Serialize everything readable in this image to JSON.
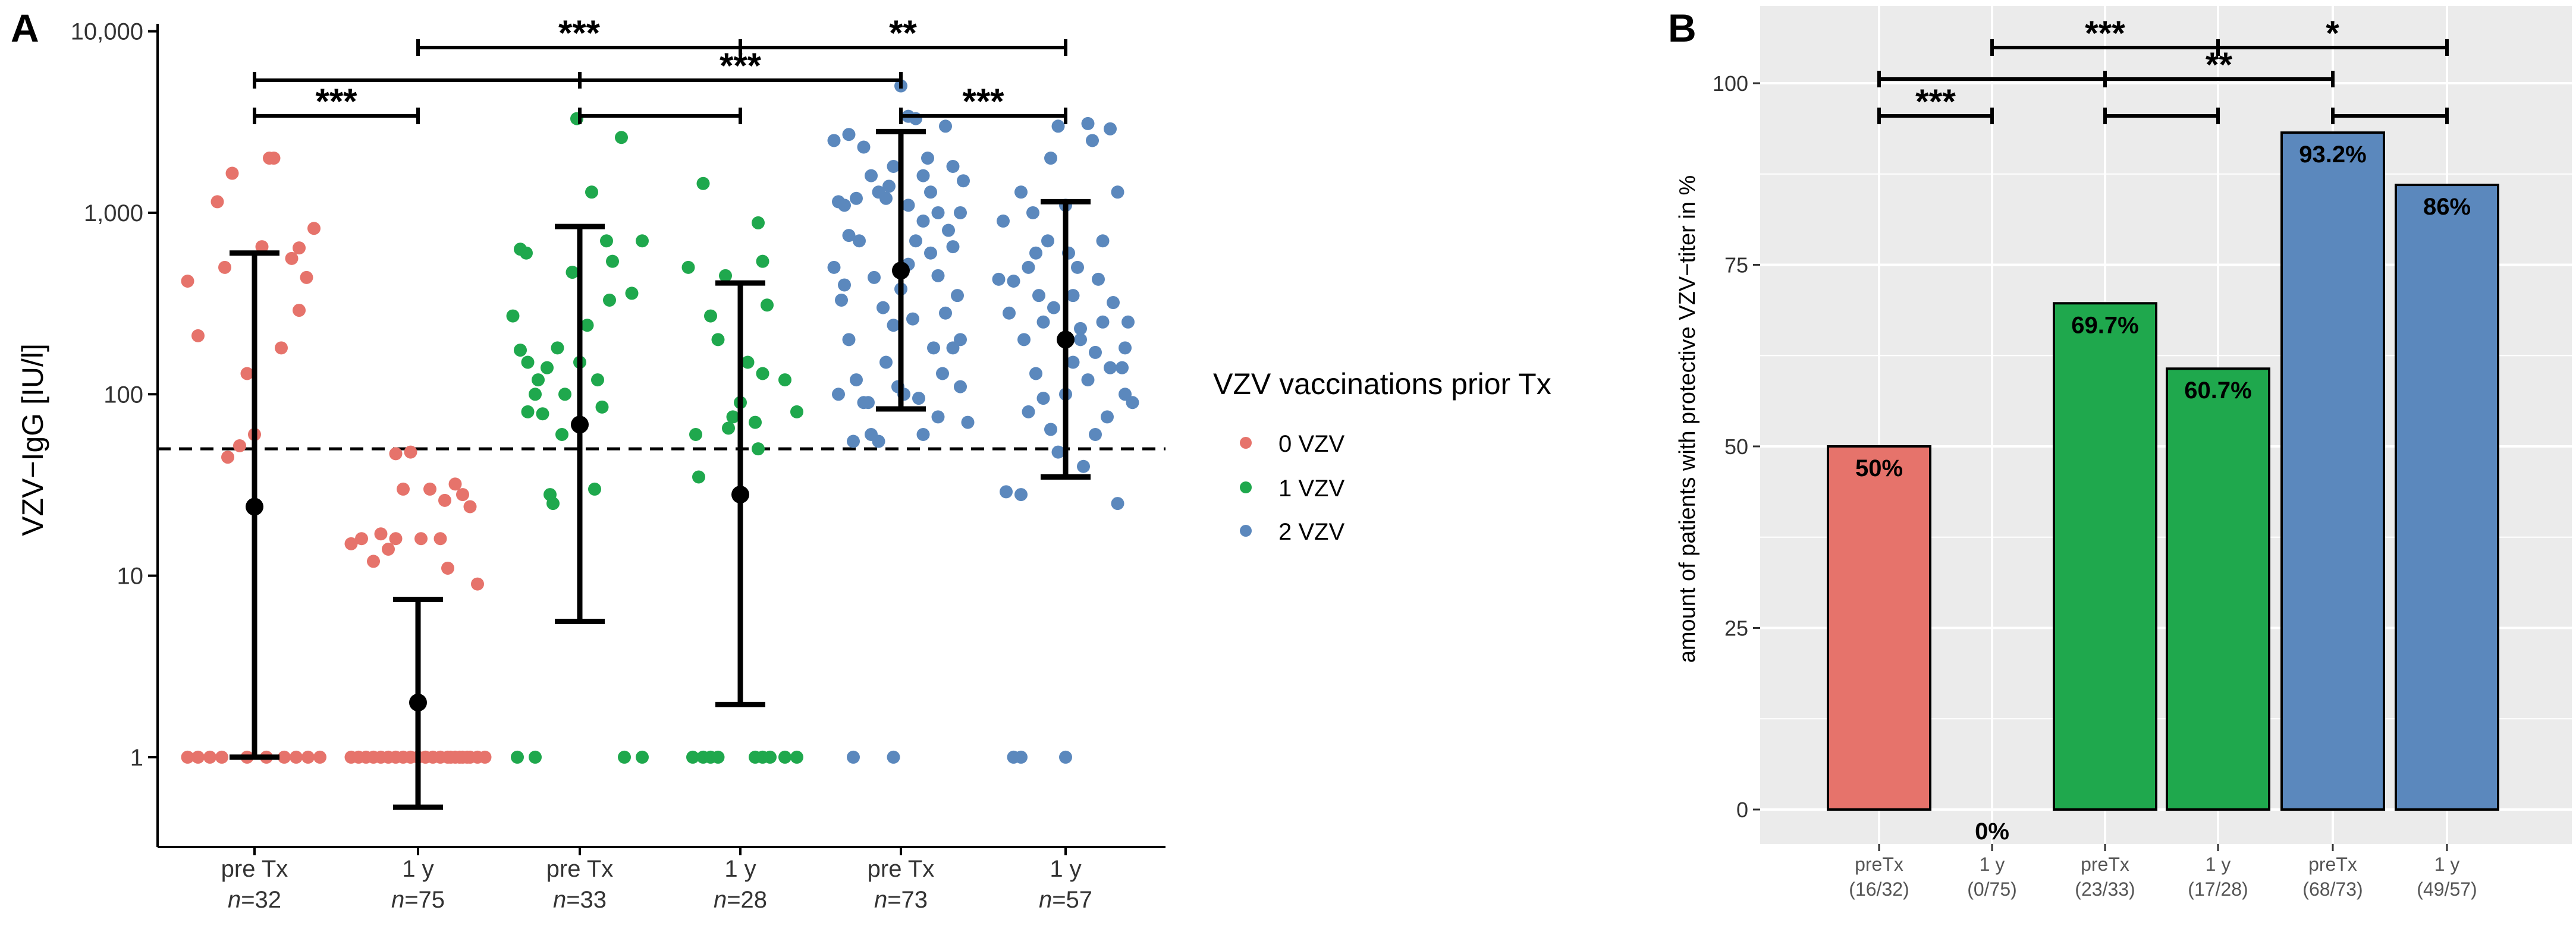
{
  "colors": {
    "vzv0": "#e6736b",
    "vzv1": "#1fa84d",
    "vzv2": "#5b88bd",
    "panel_bg_b": "#ebebeb",
    "grid_b": "#ffffff",
    "black": "#000000"
  },
  "chart_data": [
    {
      "panel": "A",
      "type": "scatter",
      "ylabel": "VZV−IgG [IU/l]",
      "yscale": "log10",
      "ylim": [
        0.32,
        11000
      ],
      "y_ticks": [
        {
          "value": 1,
          "label": "1"
        },
        {
          "value": 10,
          "label": "10"
        },
        {
          "value": 100,
          "label": "100"
        },
        {
          "value": 1000,
          "label": "1,000"
        },
        {
          "value": 10000,
          "label": "10,000"
        }
      ],
      "reference_line": 50,
      "categories": [
        {
          "label": "pre Tx",
          "n_prefix": "n",
          "n_value": "=32",
          "group": 0
        },
        {
          "label": "1  y",
          "n_prefix": "n",
          "n_value": "=75",
          "group": 0
        },
        {
          "label": "pre Tx",
          "n_prefix": "n",
          "n_value": "=33",
          "group": 1
        },
        {
          "label": "1  y",
          "n_prefix": "n",
          "n_value": "=28",
          "group": 1
        },
        {
          "label": "pre Tx",
          "n_prefix": "n",
          "n_value": "=73",
          "group": 2
        },
        {
          "label": "1  y",
          "n_prefix": "n",
          "n_value": "=57",
          "group": 2
        }
      ],
      "summary": [
        {
          "mean": 24,
          "lower": 1,
          "upper": 600
        },
        {
          "mean": 2,
          "lower": 0.53,
          "upper": 7.4
        },
        {
          "mean": 68,
          "lower": 5.6,
          "upper": 840
        },
        {
          "mean": 28,
          "lower": 1.95,
          "upper": 410
        },
        {
          "mean": 480,
          "lower": 83,
          "upper": 2800
        },
        {
          "mean": 200,
          "lower": 35,
          "upper": 1150
        }
      ],
      "points": [
        [
          [
            -0.45,
            1
          ],
          [
            -0.38,
            1
          ],
          [
            -0.3,
            1
          ],
          [
            -0.22,
            1
          ],
          [
            0.08,
            1
          ],
          [
            0.2,
            1
          ],
          [
            0.28,
            1
          ],
          [
            0.36,
            1
          ],
          [
            0.44,
            1
          ],
          [
            -0.05,
            1
          ],
          [
            -0.45,
            420
          ],
          [
            -0.38,
            210
          ],
          [
            -0.25,
            1150
          ],
          [
            -0.15,
            1650
          ],
          [
            -0.2,
            500
          ],
          [
            -0.05,
            130
          ],
          [
            0,
            60
          ],
          [
            -0.1,
            52
          ],
          [
            -0.18,
            45
          ],
          [
            0.05,
            650
          ],
          [
            0.13,
            2000
          ],
          [
            0.18,
            180
          ],
          [
            0.3,
            290
          ],
          [
            0.35,
            440
          ],
          [
            0.4,
            820
          ],
          [
            0.3,
            640
          ],
          [
            0.25,
            560
          ],
          [
            0.1,
            2000
          ]
        ],
        [
          [
            -0.45,
            15
          ],
          [
            -0.38,
            16
          ],
          [
            -0.3,
            12
          ],
          [
            -0.25,
            17
          ],
          [
            -0.15,
            16
          ],
          [
            -0.2,
            14
          ],
          [
            -0.1,
            30
          ],
          [
            -0.05,
            48
          ],
          [
            -0.15,
            47
          ],
          [
            0.08,
            30
          ],
          [
            0.15,
            16
          ],
          [
            0.2,
            11
          ],
          [
            0.25,
            32
          ],
          [
            0.3,
            28
          ],
          [
            0.35,
            24
          ],
          [
            0.4,
            9
          ],
          [
            0.18,
            26
          ],
          [
            0.02,
            16
          ],
          [
            -0.45,
            1
          ],
          [
            -0.4,
            1
          ],
          [
            -0.35,
            1
          ],
          [
            -0.3,
            1
          ],
          [
            -0.25,
            1
          ],
          [
            -0.2,
            1
          ],
          [
            -0.15,
            1
          ],
          [
            -0.1,
            1
          ],
          [
            -0.05,
            1
          ],
          [
            0,
            1
          ],
          [
            0.05,
            1
          ],
          [
            0.1,
            1
          ],
          [
            0.15,
            1
          ],
          [
            0.2,
            1
          ],
          [
            0.25,
            1
          ],
          [
            0.3,
            1
          ],
          [
            0.35,
            1
          ],
          [
            0.4,
            1
          ],
          [
            0.45,
            1
          ],
          [
            0.22,
            1
          ],
          [
            0.28,
            1
          ],
          [
            0.33,
            1
          ]
        ],
        [
          [
            -0.42,
            1
          ],
          [
            -0.3,
            1
          ],
          [
            0.3,
            1
          ],
          [
            0.42,
            1
          ],
          [
            -0.4,
            630
          ],
          [
            -0.36,
            600
          ],
          [
            -0.45,
            270
          ],
          [
            -0.4,
            175
          ],
          [
            -0.35,
            150
          ],
          [
            -0.3,
            100
          ],
          [
            -0.35,
            80
          ],
          [
            -0.25,
            78
          ],
          [
            -0.15,
            180
          ],
          [
            -0.2,
            28
          ],
          [
            -0.18,
            25
          ],
          [
            -0.05,
            470
          ],
          [
            -0.02,
            3300
          ],
          [
            0.08,
            1300
          ],
          [
            0.12,
            120
          ],
          [
            0.15,
            85
          ],
          [
            0.22,
            540
          ],
          [
            0.2,
            330
          ],
          [
            0.28,
            2600
          ],
          [
            0.35,
            360
          ],
          [
            0.42,
            700
          ],
          [
            -0.1,
            100
          ],
          [
            0,
            150
          ],
          [
            -0.22,
            140
          ],
          [
            -0.28,
            120
          ],
          [
            0.05,
            240
          ],
          [
            0.18,
            700
          ],
          [
            -0.12,
            60
          ],
          [
            0.1,
            30
          ]
        ],
        [
          [
            -0.32,
            1
          ],
          [
            -0.25,
            1
          ],
          [
            -0.2,
            1
          ],
          [
            -0.15,
            1
          ],
          [
            0.1,
            1
          ],
          [
            0.15,
            1
          ],
          [
            0.2,
            1
          ],
          [
            0.3,
            1
          ],
          [
            0.38,
            1
          ],
          [
            -0.35,
            500
          ],
          [
            -0.25,
            1450
          ],
          [
            -0.3,
            60
          ],
          [
            -0.28,
            35
          ],
          [
            -0.15,
            200
          ],
          [
            -0.2,
            270
          ],
          [
            -0.05,
            75
          ],
          [
            0,
            90
          ],
          [
            0.1,
            70
          ],
          [
            0.12,
            880
          ],
          [
            0.15,
            540
          ],
          [
            0.15,
            130
          ],
          [
            0.3,
            120
          ],
          [
            0.38,
            80
          ],
          [
            -0.08,
            65
          ],
          [
            0.05,
            150
          ],
          [
            0.18,
            310
          ],
          [
            -0.1,
            450
          ],
          [
            0.12,
            50
          ]
        ],
        [
          [
            -0.32,
            1
          ],
          [
            -0.05,
            1
          ],
          [
            -0.42,
            1150
          ],
          [
            -0.35,
            2700
          ],
          [
            -0.38,
            1100
          ],
          [
            -0.3,
            1200
          ],
          [
            -0.25,
            2300
          ],
          [
            -0.2,
            1600
          ],
          [
            -0.15,
            1300
          ],
          [
            -0.1,
            1200
          ],
          [
            -0.05,
            1800
          ],
          [
            0,
            5000
          ],
          [
            0.05,
            3400
          ],
          [
            0.1,
            3300
          ],
          [
            0.15,
            1600
          ],
          [
            0.2,
            1300
          ],
          [
            0.25,
            1000
          ],
          [
            0.3,
            3000
          ],
          [
            0.35,
            1800
          ],
          [
            0.4,
            1000
          ],
          [
            -0.45,
            500
          ],
          [
            -0.4,
            330
          ],
          [
            -0.35,
            200
          ],
          [
            -0.3,
            120
          ],
          [
            -0.25,
            90
          ],
          [
            -0.2,
            60
          ],
          [
            -0.15,
            55
          ],
          [
            -0.1,
            150
          ],
          [
            -0.05,
            240
          ],
          [
            0,
            380
          ],
          [
            0.05,
            520
          ],
          [
            0.1,
            700
          ],
          [
            0.15,
            900
          ],
          [
            0.2,
            600
          ],
          [
            0.25,
            450
          ],
          [
            0.3,
            280
          ],
          [
            0.35,
            180
          ],
          [
            0.4,
            110
          ],
          [
            0.45,
            70
          ],
          [
            0.02,
            100
          ],
          [
            -0.12,
            300
          ],
          [
            0.22,
            180
          ],
          [
            -0.28,
            700
          ],
          [
            0.32,
            800
          ],
          [
            -0.42,
            100
          ],
          [
            0.12,
            95
          ],
          [
            0.28,
            130
          ],
          [
            -0.18,
            440
          ],
          [
            0.38,
            350
          ],
          [
            -0.35,
            750
          ],
          [
            0.08,
            260
          ],
          [
            0.42,
            1500
          ],
          [
            -0.45,
            2500
          ],
          [
            0.18,
            2000
          ],
          [
            -0.08,
            1400
          ],
          [
            0.35,
            650
          ],
          [
            -0.22,
            90
          ],
          [
            0.05,
            1100
          ],
          [
            -0.32,
            55
          ],
          [
            0.25,
            75
          ],
          [
            0.15,
            60
          ],
          [
            -0.02,
            110
          ],
          [
            0.4,
            200
          ],
          [
            -0.38,
            400
          ]
        ],
        [
          [
            -0.35,
            1
          ],
          [
            -0.3,
            1
          ],
          [
            0,
            1
          ],
          [
            -0.42,
            900
          ],
          [
            -0.38,
            280
          ],
          [
            -0.35,
            420
          ],
          [
            -0.3,
            1300
          ],
          [
            -0.25,
            500
          ],
          [
            -0.2,
            600
          ],
          [
            -0.15,
            250
          ],
          [
            -0.1,
            2000
          ],
          [
            -0.05,
            3000
          ],
          [
            0,
            1100
          ],
          [
            0.05,
            350
          ],
          [
            0.1,
            230
          ],
          [
            0.15,
            3100
          ],
          [
            0.2,
            170
          ],
          [
            0.25,
            700
          ],
          [
            0.3,
            2900
          ],
          [
            0.35,
            1300
          ],
          [
            0.4,
            100
          ],
          [
            0.45,
            90
          ],
          [
            -0.45,
            430
          ],
          [
            -0.4,
            29
          ],
          [
            -0.3,
            28
          ],
          [
            -0.25,
            80
          ],
          [
            -0.2,
            130
          ],
          [
            -0.15,
            95
          ],
          [
            -0.1,
            64
          ],
          [
            -0.05,
            48
          ],
          [
            0,
            100
          ],
          [
            0.05,
            150
          ],
          [
            0.1,
            200
          ],
          [
            0.15,
            120
          ],
          [
            0.2,
            60
          ],
          [
            0.25,
            250
          ],
          [
            0.3,
            140
          ],
          [
            0.35,
            25
          ],
          [
            0.4,
            180
          ],
          [
            0.08,
            500
          ],
          [
            -0.08,
            300
          ],
          [
            0.22,
            430
          ],
          [
            0.32,
            320
          ],
          [
            -0.22,
            1000
          ],
          [
            0.18,
            2500
          ],
          [
            -0.12,
            700
          ],
          [
            0.12,
            40
          ],
          [
            0.42,
            250
          ],
          [
            0.28,
            75
          ],
          [
            -0.28,
            200
          ],
          [
            0.02,
            600
          ],
          [
            -0.18,
            350
          ],
          [
            0.38,
            140
          ]
        ]
      ],
      "significance": [
        {
          "from": 0,
          "to": 1,
          "label": "***",
          "level": 0
        },
        {
          "from": 2,
          "to": 3,
          "label": "",
          "level": 0
        },
        {
          "from": 4,
          "to": 5,
          "label": "***",
          "level": 0
        },
        {
          "from": 0,
          "to": 2,
          "label": "",
          "level": 1
        },
        {
          "from": 2,
          "to": 4,
          "label": "***",
          "level": 1
        },
        {
          "from": 1,
          "to": 3,
          "label": "***",
          "level": 2
        },
        {
          "from": 3,
          "to": 5,
          "label": "**",
          "level": 2
        }
      ]
    },
    {
      "panel": "B",
      "type": "bar",
      "ylabel": "amount of patients with protective VZV−titer in %",
      "ylim": [
        0,
        105
      ],
      "y_ticks": [
        0,
        25,
        50,
        75,
        100
      ],
      "categories": [
        {
          "label": "preTx",
          "count": "(16/32)",
          "group": 0
        },
        {
          "label": "1  y",
          "count": "(0/75)",
          "group": 0
        },
        {
          "label": "preTx",
          "count": "(23/33)",
          "group": 1
        },
        {
          "label": "1  y",
          "count": "(17/28)",
          "group": 1
        },
        {
          "label": "preTx",
          "count": "(68/73)",
          "group": 2
        },
        {
          "label": "1  y",
          "count": "(49/57)",
          "group": 2
        }
      ],
      "values": [
        50,
        0,
        69.7,
        60.7,
        93.2,
        86
      ],
      "value_labels": [
        "50%",
        "0%",
        "69.7%",
        "60.7%",
        "93.2%",
        "86%"
      ],
      "significance": [
        {
          "from": 0,
          "to": 1,
          "label": "***",
          "level": 0
        },
        {
          "from": 2,
          "to": 3,
          "label": "",
          "level": 0
        },
        {
          "from": 4,
          "to": 5,
          "label": "",
          "level": 0
        },
        {
          "from": 0,
          "to": 2,
          "label": "",
          "level": 1
        },
        {
          "from": 2,
          "to": 4,
          "label": "**",
          "level": 1
        },
        {
          "from": 1,
          "to": 3,
          "label": "***",
          "level": 2
        },
        {
          "from": 3,
          "to": 5,
          "label": "*",
          "level": 2
        }
      ]
    }
  ],
  "panels": {
    "a_letter": "A",
    "b_letter": "B"
  },
  "legend": {
    "title": "VZV vaccinations prior Tx",
    "items": [
      {
        "label": "0 VZV"
      },
      {
        "label": "1 VZV"
      },
      {
        "label": "2 VZV"
      }
    ]
  }
}
